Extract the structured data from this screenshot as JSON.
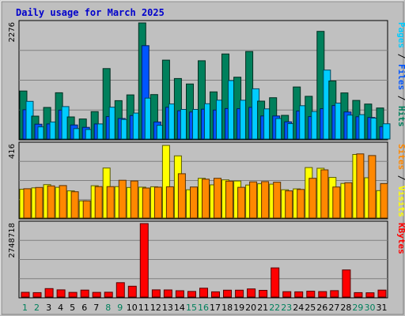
{
  "chart_data": {
    "type": "bar",
    "title": "Daily usage for March 2025",
    "categories": [
      "1",
      "2",
      "3",
      "4",
      "5",
      "6",
      "7",
      "8",
      "9",
      "10",
      "11",
      "12",
      "13",
      "14",
      "15",
      "16",
      "17",
      "18",
      "19",
      "20",
      "21",
      "22",
      "23",
      "24",
      "25",
      "26",
      "27",
      "28",
      "29",
      "30",
      "31"
    ],
    "weekend_days": [
      "1",
      "2",
      "8",
      "9",
      "15",
      "16",
      "22",
      "23",
      "29",
      "30"
    ],
    "panels": [
      {
        "id": "hits-panel",
        "ymax_label": "2276",
        "ymax": 2276,
        "legend": [
          {
            "text": "Pages",
            "color": "#00ccff"
          },
          {
            "text": " / ",
            "color": "#000000"
          },
          {
            "text": "Files",
            "color": "#0055ff"
          },
          {
            "text": " / ",
            "color": "#000000"
          },
          {
            "text": "Hits",
            "color": "#00805c"
          }
        ],
        "series": [
          {
            "name": "Hits",
            "color": "#00805c",
            "values": [
              942,
              449,
              620,
              907,
              434,
              393,
              538,
              1381,
              752,
              866,
              2276,
              872,
              1546,
              1186,
              1079,
              1534,
              925,
              1667,
              1213,
              1716,
              743,
              810,
              464,
              1021,
              837,
              2111,
              1138,
              904,
              757,
              686,
              609
            ]
          },
          {
            "name": "Files",
            "color": "#0055ff",
            "values": [
              575,
              291,
              295,
              566,
              275,
              229,
              296,
              439,
              403,
              460,
              1830,
              334,
              622,
              555,
              529,
              586,
              568,
              597,
              595,
              621,
              452,
              452,
              337,
              548,
              440,
              594,
              656,
              531,
              436,
              423,
              242
            ]
          },
          {
            "name": "Pages",
            "color": "#00ccff",
            "values": [
              738,
              238,
              334,
              636,
              205,
              188,
              296,
              624,
              384,
              509,
              802,
              269,
              688,
              581,
              581,
              692,
              761,
              1146,
              760,
              984,
              591,
              403,
              302,
              654,
              539,
              1352,
              704,
              469,
              479,
              411,
              299
            ]
          }
        ]
      },
      {
        "id": "visits-panel",
        "ymax_label": "416",
        "ymax": 416,
        "legend": [
          {
            "text": "Sites",
            "color": "#ff8800"
          },
          {
            "text": " / ",
            "color": "#000000"
          },
          {
            "text": "Visits",
            "color": "#ffff00"
          }
        ],
        "series": [
          {
            "name": "Visits",
            "color": "#ffff00",
            "values": [
              163,
              171,
              189,
              174,
              154,
              97,
              183,
              283,
              178,
              173,
              175,
              177,
              411,
              352,
              160,
              225,
              188,
              216,
              210,
              187,
              194,
              192,
              160,
              165,
              286,
              282,
              230,
              196,
              360,
              228,
              155
            ]
          },
          {
            "name": "Sites",
            "color": "#ff8800",
            "values": [
              166,
              173,
              182,
              184,
              149,
              97,
              178,
              178,
              214,
              210,
              170,
              175,
              177,
              251,
              176,
              220,
              225,
              209,
              174,
              205,
              206,
              203,
              154,
              162,
              225,
              273,
              176,
              200,
              363,
              354,
              195
            ]
          }
        ]
      },
      {
        "id": "kbytes-panel",
        "ymax_label": "2748718",
        "ymax": 2748718,
        "legend": [
          {
            "text": "KBytes",
            "color": "#ff0000"
          }
        ],
        "series": [
          {
            "name": "KBytes",
            "color": "#ff0000",
            "values": [
              176000,
              165000,
              315000,
              270000,
              174000,
              260000,
              174000,
              180000,
              537000,
              405000,
              2748718,
              270000,
              265000,
              235000,
              210000,
              330000,
              196000,
              257000,
              257000,
              305000,
              250000,
              1090000,
              200000,
              196000,
              220000,
              205000,
              240000,
              1015000,
              165000,
              160000,
              260000
            ]
          }
        ]
      }
    ]
  }
}
